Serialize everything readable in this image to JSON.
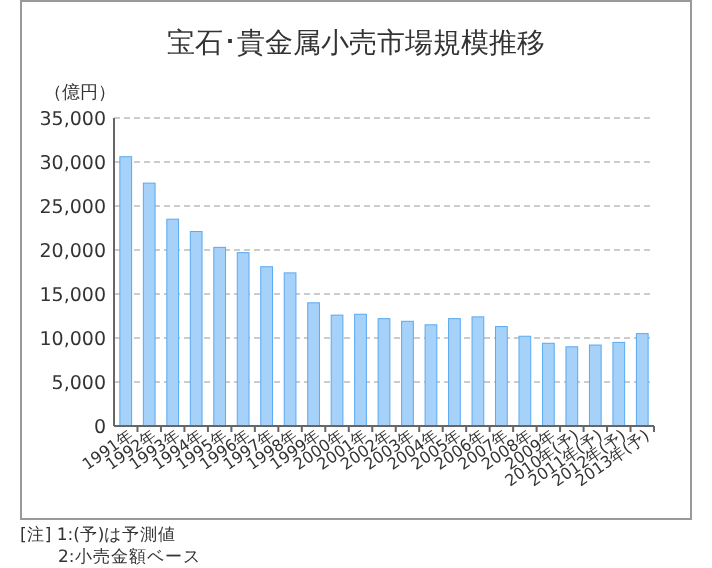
{
  "chart_data": {
    "type": "bar",
    "title": "宝石･貴金属小売市場規模推移",
    "ylabel": "（億円）",
    "categories": [
      "1991年",
      "1992年",
      "1993年",
      "1994年",
      "1995年",
      "1996年",
      "1997年",
      "1998年",
      "1999年",
      "2000年",
      "2001年",
      "2002年",
      "2003年",
      "2004年",
      "2005年",
      "2006年",
      "2007年",
      "2008年",
      "2009年",
      "2010年(予)",
      "2011年(予)",
      "2012年(予)",
      "2013年(予)"
    ],
    "values": [
      30600,
      27600,
      23500,
      22100,
      20300,
      19700,
      18100,
      17400,
      14000,
      12600,
      12700,
      12200,
      11900,
      11500,
      12200,
      12400,
      11300,
      10200,
      9400,
      9000,
      9200,
      9500,
      10500
    ],
    "color": "#a6d2fa",
    "ylim": [
      0,
      35000
    ],
    "yticks": [
      {
        "value": 0,
        "label": "0"
      },
      {
        "value": 5000,
        "label": "5,000"
      },
      {
        "value": 10000,
        "label": "10,000"
      },
      {
        "value": 15000,
        "label": "15,000"
      },
      {
        "value": 20000,
        "label": "20,000"
      },
      {
        "value": 25000,
        "label": "25,000"
      },
      {
        "value": 30000,
        "label": "30,000"
      },
      {
        "value": 35000,
        "label": "35,000"
      }
    ],
    "grid": "y",
    "annotations": [
      "[注] 1:(予)は予測値",
      "2:小売金額ベース"
    ]
  }
}
